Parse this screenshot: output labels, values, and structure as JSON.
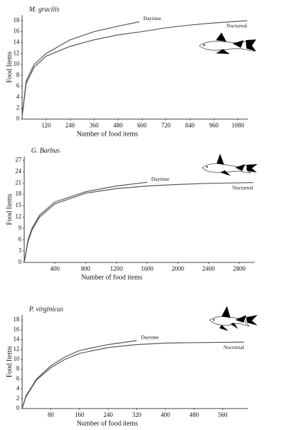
{
  "chart_data": [
    {
      "type": "line",
      "title": "M. gracilis",
      "xlabel": "Number of food items",
      "ylabel": "Food Items",
      "xlim": [
        0,
        1130
      ],
      "ylim": [
        0,
        19
      ],
      "xticks": [
        120,
        240,
        360,
        480,
        600,
        720,
        840,
        960,
        1080
      ],
      "yticks": [
        0,
        2,
        4,
        6,
        8,
        10,
        12,
        14,
        16,
        18
      ],
      "series": [
        {
          "name": "Daytime",
          "color": "#555555",
          "x": [
            0,
            20,
            60,
            120,
            240,
            360,
            480,
            586
          ],
          "values": [
            0.5,
            7,
            10,
            12,
            14.5,
            16,
            17,
            17.8
          ]
        },
        {
          "name": "Nocturnal",
          "color": "#555555",
          "x": [
            0,
            20,
            60,
            120,
            240,
            360,
            480,
            600,
            720,
            840,
            960,
            1127
          ],
          "values": [
            0.5,
            6.5,
            9.5,
            11.5,
            13.3,
            14.5,
            15.4,
            16,
            16.7,
            17.2,
            17.6,
            18
          ]
        }
      ]
    },
    {
      "type": "line",
      "title": "G. Barbus",
      "xlabel": "Number of food items",
      "ylabel": "Food Items",
      "xlim": [
        0,
        3000
      ],
      "ylim": [
        0,
        28
      ],
      "xticks": [
        400,
        800,
        1200,
        1600,
        2000,
        2400,
        2800
      ],
      "yticks": [
        0,
        3,
        6,
        9,
        12,
        15,
        18,
        21,
        24,
        27
      ],
      "series": [
        {
          "name": "Daytime",
          "color": "#555555",
          "x": [
            0,
            50,
            100,
            200,
            400,
            800,
            1200,
            1600
          ],
          "values": [
            0,
            6,
            9,
            12.5,
            16,
            18.7,
            20.2,
            21.2
          ]
        },
        {
          "name": "Nocturnal",
          "color": "#555555",
          "x": [
            0,
            50,
            100,
            200,
            400,
            800,
            1200,
            1600,
            2000,
            2400,
            2980
          ],
          "values": [
            0,
            5.5,
            8.5,
            12,
            15.5,
            18.3,
            19.5,
            20.2,
            20.6,
            20.9,
            21.1
          ]
        }
      ]
    },
    {
      "type": "line",
      "title": "P. virginicus",
      "xlabel": "Number of food items",
      "ylabel": "Food Items",
      "xlim": [
        0,
        630
      ],
      "ylim": [
        0,
        19
      ],
      "xticks": [
        80,
        160,
        240,
        320,
        400,
        480,
        560
      ],
      "yticks": [
        0,
        2,
        4,
        6,
        8,
        10,
        12,
        14,
        16,
        18
      ],
      "series": [
        {
          "name": "Daytime",
          "color": "#555555",
          "x": [
            0,
            10,
            40,
            80,
            120,
            160,
            240,
            320
          ],
          "values": [
            0,
            2.5,
            6,
            8.7,
            10.5,
            11.8,
            13,
            13.8
          ]
        },
        {
          "name": "Nocturnal",
          "color": "#555555",
          "x": [
            0,
            10,
            40,
            80,
            120,
            160,
            240,
            320,
            400,
            480,
            620
          ],
          "values": [
            0,
            2.3,
            5.8,
            8.3,
            10,
            11.2,
            12.4,
            13,
            13.3,
            13.4,
            13.5
          ]
        }
      ]
    }
  ]
}
